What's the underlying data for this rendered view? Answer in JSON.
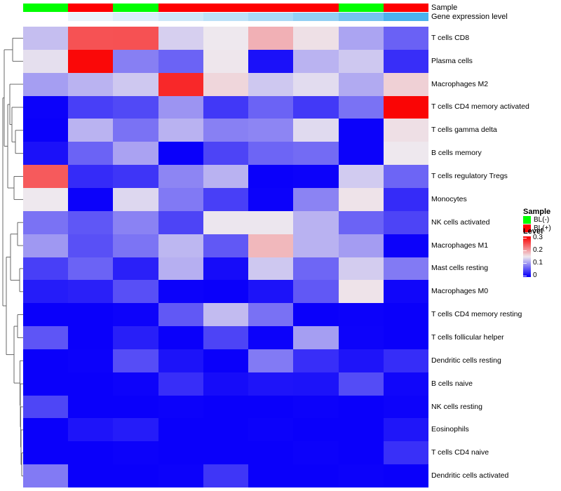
{
  "annotation": {
    "sample_label": "Sample",
    "gene_label": "Gene expression level",
    "sample_colors": {
      "BL(-)": "#00FE00",
      "BL(+)": "#FE0000"
    },
    "columns_sample": [
      "BL(-)",
      "BL(+)",
      "BL(-)",
      "BL(+)",
      "BL(+)",
      "BL(+)",
      "BL(+)",
      "BL(-)",
      "BL(+)"
    ],
    "columns_gene_colors": [
      "#FFFFFF",
      "#EAF4FB",
      "#DBEEFA",
      "#CDE8F9",
      "#BCE1F8",
      "#A9D9F6",
      "#92D0F4",
      "#74C3F1",
      "#4AB2EE"
    ]
  },
  "legend": {
    "sample_title": "Sample",
    "sample_items": [
      {
        "label": "BL(-)",
        "color": "#00FE00"
      },
      {
        "label": "BL(+)",
        "color": "#FE0000"
      }
    ],
    "level_title": "Level",
    "level_ticks": [
      "0.3",
      "0.2",
      "0.1",
      "0"
    ]
  },
  "chart_data": {
    "type": "heatmap",
    "title": "",
    "rows": [
      "T cells CD8",
      "Plasma cells",
      "Macrophages M2",
      "T cells CD4 memory activated",
      "T cells gamma delta",
      "B cells memory",
      "T cells regulatory  Tregs",
      "Monocytes",
      "NK cells activated",
      "Macrophages M1",
      "Mast cells resting",
      "Macrophages M0",
      "T cells CD4 memory resting",
      "T cells follicular helper",
      "Dendritic cells resting",
      "B cells naive",
      "NK cells resting",
      "Eosinophils",
      "T cells CD4 naive",
      "Dendritic cells activated"
    ],
    "columns_sample_group": [
      "BL(-)",
      "BL(+)",
      "BL(-)",
      "BL(+)",
      "BL(+)",
      "BL(+)",
      "BL(+)",
      "BL(-)",
      "BL(+)"
    ],
    "value_range": [
      0,
      0.3
    ],
    "colormap": {
      "low": "#0A00FA",
      "mid": "#EEE8EE",
      "high": "#FA0505",
      "midpoint": 0.15
    },
    "values": [
      [
        0.123,
        0.249,
        0.25,
        0.134,
        0.15,
        0.187,
        0.155,
        0.106,
        0.063
      ],
      [
        0.144,
        0.298,
        0.082,
        0.064,
        0.151,
        0.011,
        0.116,
        0.129,
        0.03
      ],
      [
        0.102,
        0.116,
        0.129,
        0.277,
        0.162,
        0.129,
        0.142,
        0.11,
        0.166
      ],
      [
        0.001,
        0.041,
        0.047,
        0.096,
        0.036,
        0.064,
        0.037,
        0.074,
        0.3
      ],
      [
        0.0,
        0.116,
        0.074,
        0.115,
        0.083,
        0.086,
        0.141,
        0.001,
        0.156
      ],
      [
        0.011,
        0.064,
        0.105,
        0.0,
        0.044,
        0.065,
        0.069,
        0.001,
        0.15
      ],
      [
        0.244,
        0.028,
        0.034,
        0.086,
        0.115,
        0.0,
        0.001,
        0.131,
        0.065
      ],
      [
        0.15,
        0.001,
        0.139,
        0.078,
        0.041,
        0.001,
        0.085,
        0.153,
        0.028
      ],
      [
        0.074,
        0.056,
        0.084,
        0.044,
        0.149,
        0.149,
        0.115,
        0.064,
        0.044
      ],
      [
        0.098,
        0.052,
        0.075,
        0.118,
        0.057,
        0.182,
        0.115,
        0.101,
        0.001
      ],
      [
        0.041,
        0.064,
        0.021,
        0.113,
        0.008,
        0.129,
        0.066,
        0.132,
        0.079
      ],
      [
        0.018,
        0.021,
        0.051,
        0.001,
        0.0,
        0.012,
        0.057,
        0.153,
        0.004
      ],
      [
        0.0,
        0.0,
        0.002,
        0.057,
        0.121,
        0.073,
        0.0,
        0.001,
        0.0
      ],
      [
        0.055,
        0.0,
        0.02,
        0.0,
        0.044,
        0.001,
        0.102,
        0.002,
        0.0
      ],
      [
        0.0,
        0.001,
        0.05,
        0.012,
        0.0,
        0.079,
        0.03,
        0.013,
        0.029
      ],
      [
        0.0,
        0.0,
        0.002,
        0.03,
        0.008,
        0.013,
        0.012,
        0.049,
        0.004
      ],
      [
        0.045,
        0.0,
        0.0,
        0.001,
        0.0,
        0.0,
        0.001,
        0.0,
        0.002
      ],
      [
        0.0,
        0.013,
        0.018,
        0.0,
        0.0,
        0.001,
        0.0,
        0.0,
        0.014
      ],
      [
        0.0,
        0.0,
        0.001,
        0.0,
        0.0,
        0.0,
        0.001,
        0.0,
        0.031
      ],
      [
        0.079,
        0.0,
        0.0,
        0.001,
        0.035,
        0.0,
        0.0,
        0.001,
        0.0
      ]
    ],
    "row_dendrogram_segments": [
      [
        18,
        54.4,
        33,
        54.4
      ],
      [
        18,
        87.3,
        33,
        87.3
      ],
      [
        18,
        54.4,
        18,
        87.3
      ],
      [
        6,
        70.9,
        18,
        70.9
      ],
      [
        22,
        185.8,
        33,
        185.8
      ],
      [
        22,
        218.7,
        33,
        218.7
      ],
      [
        22,
        185.8,
        22,
        218.7
      ],
      [
        17,
        153,
        33,
        153
      ],
      [
        17,
        202.3,
        22,
        202.3
      ],
      [
        17,
        153,
        17,
        202.3
      ],
      [
        14,
        120.1,
        33,
        120.1
      ],
      [
        14,
        177.6,
        17,
        177.6
      ],
      [
        14,
        120.1,
        14,
        177.6
      ],
      [
        20,
        251.5,
        33,
        251.5
      ],
      [
        20,
        284.4,
        33,
        284.4
      ],
      [
        20,
        251.5,
        20,
        284.4
      ],
      [
        11,
        148.9,
        14,
        148.9
      ],
      [
        11,
        268,
        20,
        268
      ],
      [
        11,
        148.9,
        11,
        268
      ],
      [
        6,
        208.4,
        11,
        208.4
      ],
      [
        6,
        70.9,
        6,
        208.4
      ],
      [
        4,
        139.6,
        6,
        139.6
      ],
      [
        25,
        317.2,
        33,
        317.2
      ],
      [
        25,
        350.1,
        33,
        350.1
      ],
      [
        25,
        317.2,
        25,
        350.1
      ],
      [
        28,
        382.9,
        33,
        382.9
      ],
      [
        28,
        415.8,
        33,
        415.8
      ],
      [
        28,
        382.9,
        28,
        415.8
      ],
      [
        15,
        333.7,
        25,
        333.7
      ],
      [
        15,
        399.4,
        28,
        399.4
      ],
      [
        15,
        333.7,
        15,
        399.4
      ],
      [
        25,
        448.6,
        33,
        448.6
      ],
      [
        25,
        481.5,
        33,
        481.5
      ],
      [
        25,
        448.6,
        25,
        481.5
      ],
      [
        31,
        645.7,
        33,
        645.7
      ],
      [
        31,
        678.6,
        33,
        678.6
      ],
      [
        31,
        645.7,
        31,
        678.6
      ],
      [
        30,
        612.9,
        33,
        612.9
      ],
      [
        30,
        662.2,
        31,
        662.2
      ],
      [
        30,
        612.9,
        30,
        662.2
      ],
      [
        29.5,
        580,
        33,
        580
      ],
      [
        29.5,
        637.5,
        30,
        637.5
      ],
      [
        29.5,
        580,
        29.5,
        637.5
      ],
      [
        29,
        547.2,
        33,
        547.2
      ],
      [
        29,
        608.8,
        29.5,
        608.8
      ],
      [
        29,
        547.2,
        29,
        608.8
      ],
      [
        28.5,
        514.3,
        33,
        514.3
      ],
      [
        28.5,
        578,
        29,
        578
      ],
      [
        28.5,
        514.3,
        28.5,
        578
      ],
      [
        20,
        465.1,
        25,
        465.1
      ],
      [
        20,
        546.1,
        28.5,
        546.1
      ],
      [
        20,
        465.1,
        20,
        546.1
      ],
      [
        9,
        366.5,
        15,
        366.5
      ],
      [
        9,
        505.6,
        20,
        505.6
      ],
      [
        9,
        366.5,
        9,
        505.6
      ],
      [
        4,
        436,
        9,
        436
      ],
      [
        4,
        139.6,
        4,
        436
      ]
    ]
  }
}
